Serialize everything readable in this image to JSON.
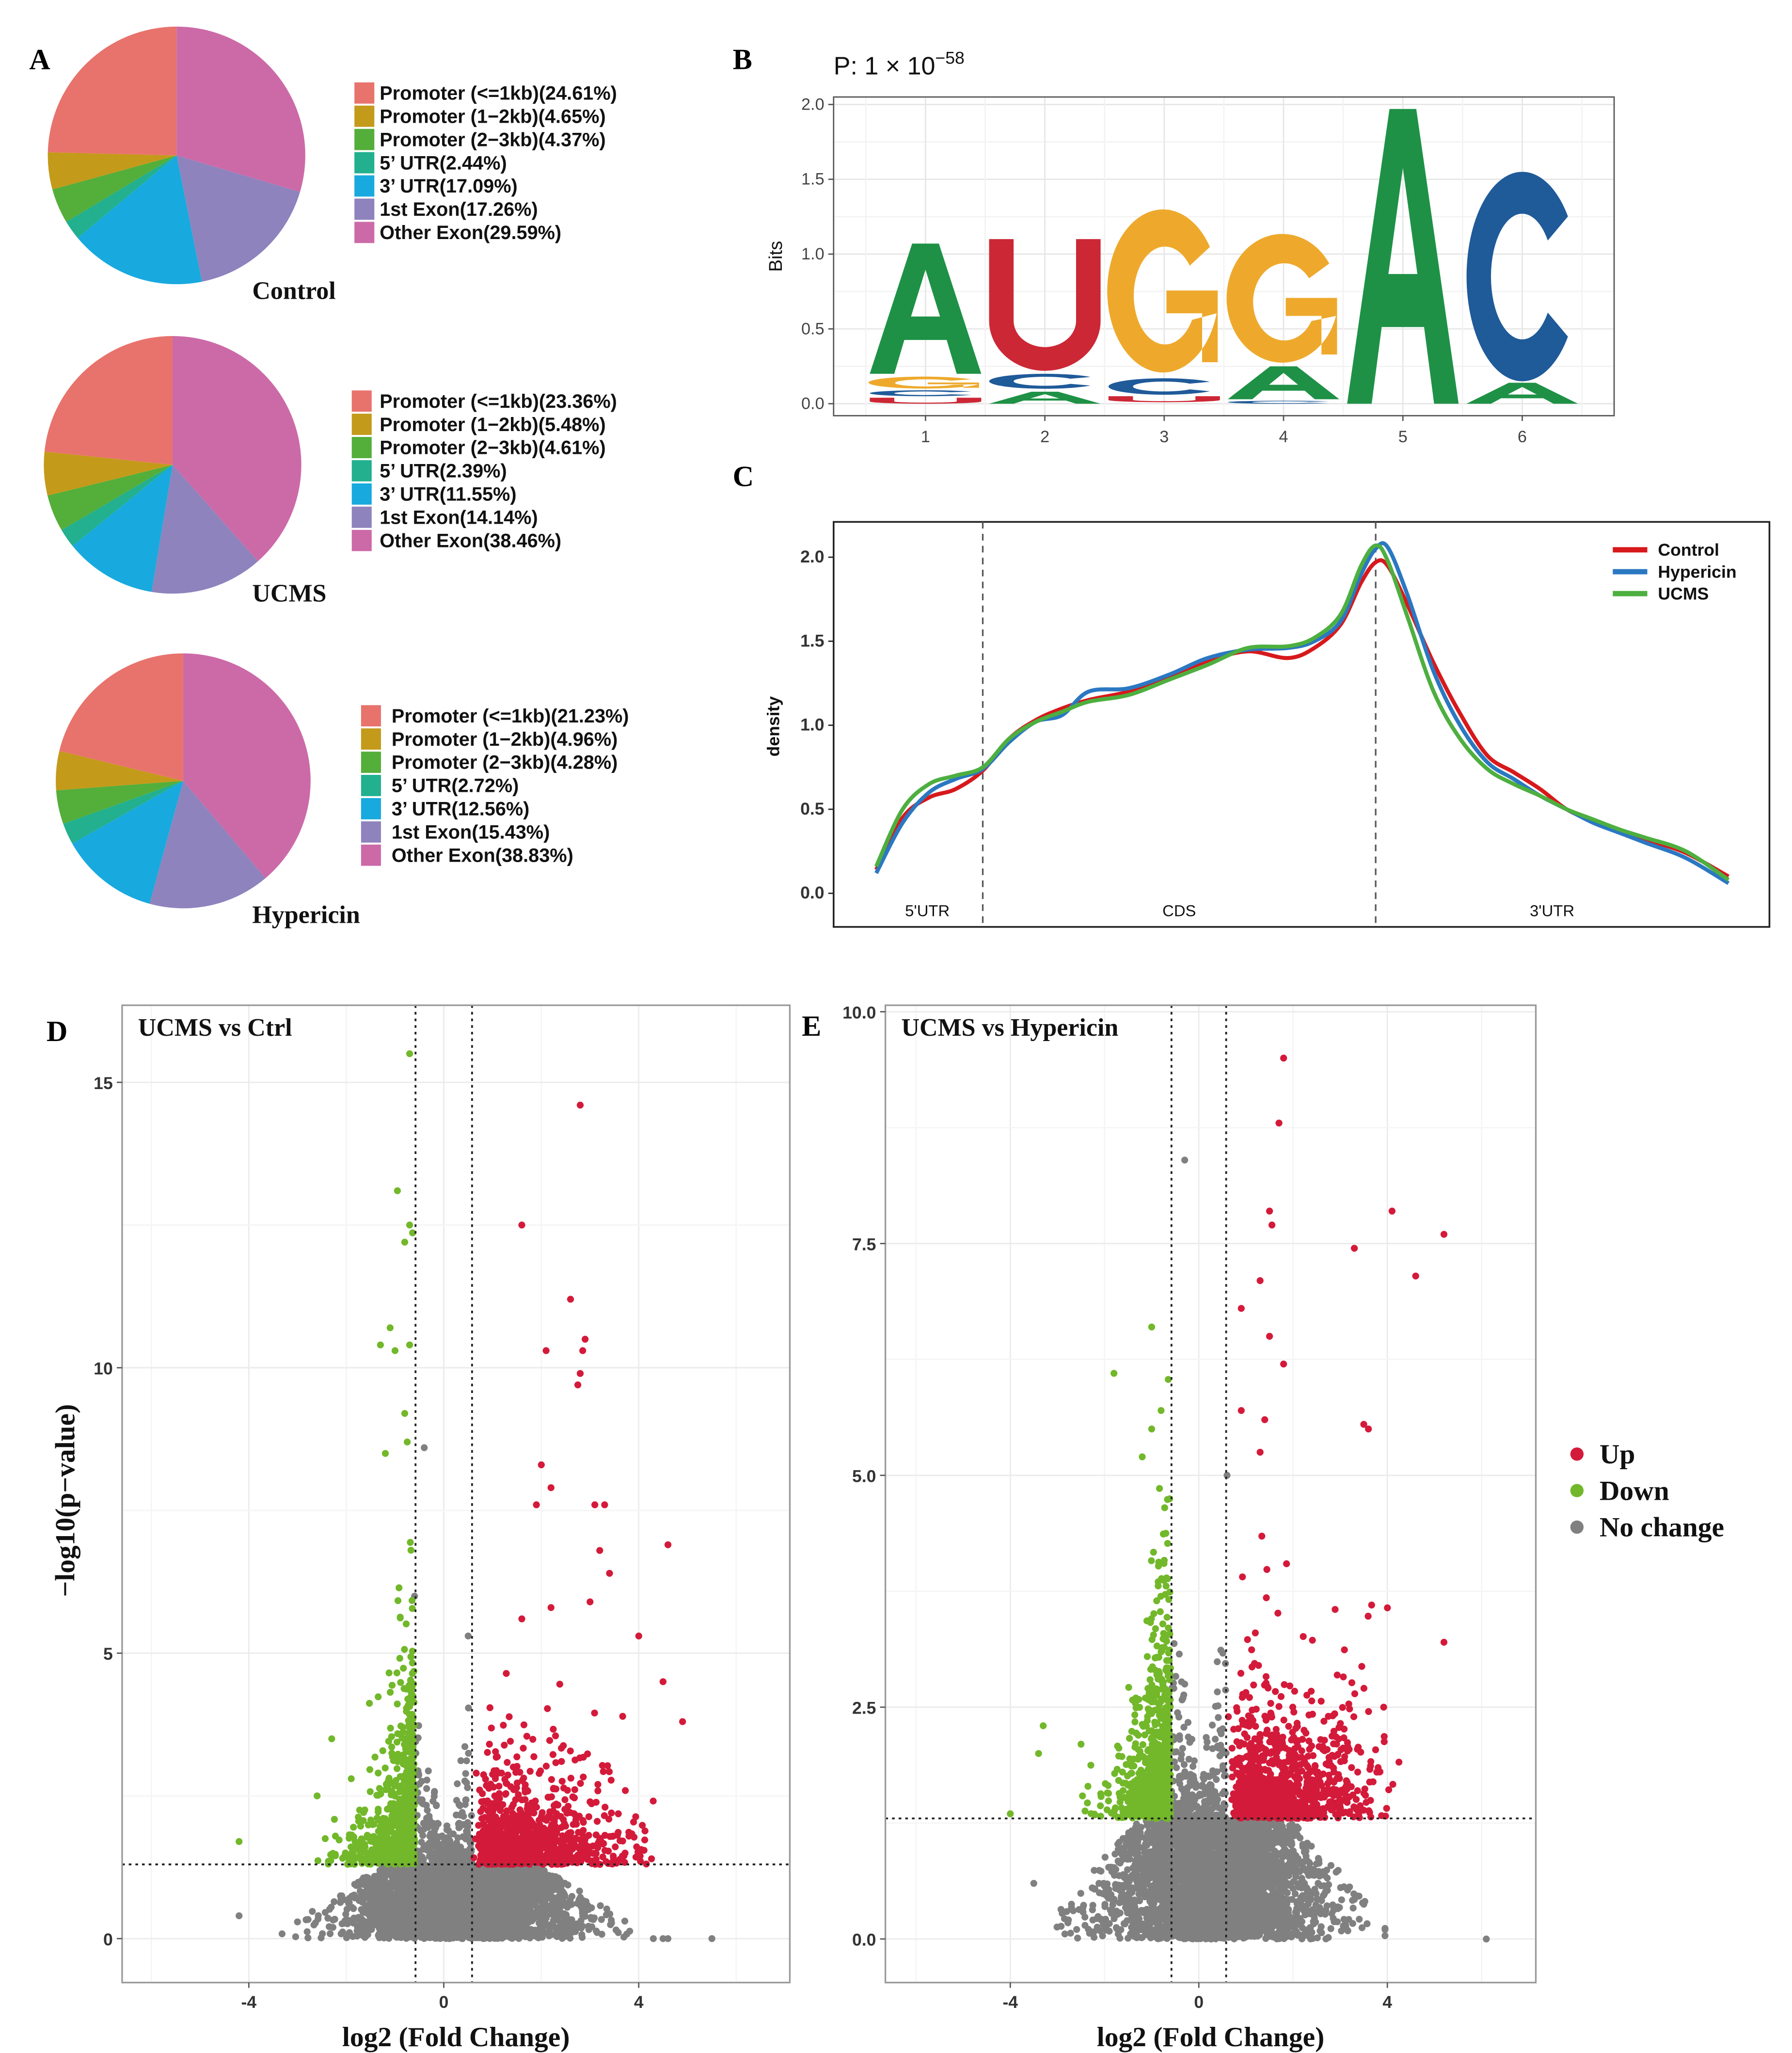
{
  "panel_labels": {
    "a": "A",
    "b": "B",
    "c": "C",
    "d": "D",
    "e": "E"
  },
  "colors": {
    "pie": [
      "#E8736C",
      "#C49A1A",
      "#54AE3A",
      "#22B08E",
      "#18A9DF",
      "#8E83BD",
      "#CC6AA8"
    ],
    "logo": {
      "A": "#1E9146",
      "U": "#CC2735",
      "G": "#EEA92C",
      "C": "#1F5A99"
    },
    "density": {
      "Control": "#D7191C",
      "Hypericin": "#2B78C2",
      "UCMS": "#4DAF3F"
    },
    "volcano": {
      "Up": "#D41A3A",
      "Down": "#72B82A",
      "No change": "#808080"
    }
  },
  "chart_data": [
    {
      "type": "pie",
      "panel": "A",
      "title": "Control",
      "categories": [
        "Promoter (<=1kb)",
        "Promoter (1−2kb)",
        "Promoter (2−3kb)",
        "5’ UTR",
        "3’ UTR",
        "1st Exon",
        "Other Exon"
      ],
      "values": [
        24.61,
        4.65,
        4.37,
        2.44,
        17.09,
        17.26,
        29.59
      ]
    },
    {
      "type": "pie",
      "panel": "A",
      "title": "UCMS",
      "categories": [
        "Promoter (<=1kb)",
        "Promoter (1−2kb)",
        "Promoter (2−3kb)",
        "5’ UTR",
        "3’ UTR",
        "1st Exon",
        "Other Exon"
      ],
      "values": [
        23.36,
        5.48,
        4.61,
        2.39,
        11.55,
        14.14,
        38.46
      ]
    },
    {
      "type": "pie",
      "panel": "A",
      "title": "Hypericin",
      "categories": [
        "Promoter (<=1kb)",
        "Promoter (1−2kb)",
        "Promoter (2−3kb)",
        "5’ UTR",
        "3’ UTR",
        "1st Exon",
        "Other Exon"
      ],
      "values": [
        21.23,
        4.96,
        4.28,
        2.72,
        12.56,
        15.43,
        38.83
      ]
    },
    {
      "type": "sequence-logo",
      "panel": "B",
      "title_prefix": "P:  1 × 10",
      "title_exponent": "−58",
      "ylabel": "Bits",
      "ylim": [
        -0.08,
        2.05
      ],
      "xlim": [
        0.23,
        6.77
      ],
      "yticks": [
        "0.0",
        "0.5",
        "1.0",
        "1.5",
        "2.0"
      ],
      "xticks": [
        "1",
        "2",
        "3",
        "4",
        "5",
        "6"
      ],
      "positions": [
        [
          {
            "l": "U",
            "lo": 0.0,
            "hi": 0.04
          },
          {
            "l": "C",
            "lo": 0.05,
            "hi": 0.09
          },
          {
            "l": "G",
            "lo": 0.1,
            "hi": 0.18
          },
          {
            "l": "A",
            "lo": 0.2,
            "hi": 1.07
          }
        ],
        [
          {
            "l": "A",
            "lo": 0.0,
            "hi": 0.08
          },
          {
            "l": "C",
            "lo": 0.1,
            "hi": 0.2
          },
          {
            "l": "U",
            "lo": 0.22,
            "hi": 1.1
          }
        ],
        [
          {
            "l": "U",
            "lo": 0.01,
            "hi": 0.05
          },
          {
            "l": "C",
            "lo": 0.06,
            "hi": 0.17
          },
          {
            "l": "G",
            "lo": 0.19,
            "hi": 1.28
          }
        ],
        [
          {
            "l": "C",
            "lo": 0.0,
            "hi": 0.02
          },
          {
            "l": "A",
            "lo": 0.03,
            "hi": 0.25
          },
          {
            "l": "G",
            "lo": 0.26,
            "hi": 1.12
          }
        ],
        [
          {
            "l": "A",
            "lo": 0.0,
            "hi": 1.97
          }
        ],
        [
          {
            "l": "A",
            "lo": 0.0,
            "hi": 0.14
          },
          {
            "l": "C",
            "lo": 0.15,
            "hi": 1.55
          }
        ]
      ]
    },
    {
      "type": "line",
      "panel": "C",
      "ylabel": "density",
      "xlabel": "",
      "xlim": [
        -5,
        104.8
      ],
      "ylim": [
        -0.2,
        2.21
      ],
      "yticks": [
        0,
        0.5,
        1.0,
        1.5,
        2.0
      ],
      "regions": [
        {
          "label": "5'UTR",
          "start": 0,
          "end": 12.5
        },
        {
          "label": "CDS",
          "start": 12.5,
          "end": 58.6
        },
        {
          "label": "3'UTR",
          "start": 58.6,
          "end": 100
        }
      ],
      "boundaries": [
        12.5,
        58.6
      ],
      "x": [
        0,
        3.1,
        6.2,
        9.3,
        12.5,
        15.6,
        18.7,
        21.8,
        24.9,
        29.6,
        34.3,
        38.9,
        43.6,
        48.3,
        51.4,
        54.5,
        56.9,
        58.6,
        60.0,
        62.3,
        65.4,
        68.5,
        71.7,
        74.8,
        77.9,
        81.0,
        84.1,
        87.2,
        90.3,
        95.0,
        100
      ],
      "series": [
        {
          "name": "Control",
          "values": [
            0.14,
            0.45,
            0.57,
            0.62,
            0.73,
            0.92,
            1.03,
            1.1,
            1.15,
            1.2,
            1.28,
            1.38,
            1.44,
            1.4,
            1.46,
            1.6,
            1.85,
            1.97,
            1.95,
            1.72,
            1.37,
            1.07,
            0.82,
            0.72,
            0.62,
            0.5,
            0.43,
            0.37,
            0.32,
            0.24,
            0.1
          ]
        },
        {
          "name": "Hypericin",
          "values": [
            0.12,
            0.42,
            0.6,
            0.68,
            0.74,
            0.9,
            1.02,
            1.06,
            1.2,
            1.22,
            1.3,
            1.4,
            1.45,
            1.46,
            1.5,
            1.62,
            1.9,
            2.05,
            2.06,
            1.78,
            1.32,
            1.0,
            0.78,
            0.68,
            0.58,
            0.5,
            0.42,
            0.36,
            0.3,
            0.21,
            0.06
          ]
        },
        {
          "name": "UCMS",
          "values": [
            0.16,
            0.5,
            0.65,
            0.7,
            0.75,
            0.92,
            1.02,
            1.08,
            1.14,
            1.18,
            1.27,
            1.36,
            1.46,
            1.47,
            1.52,
            1.66,
            1.95,
            2.07,
            1.98,
            1.65,
            1.2,
            0.92,
            0.74,
            0.65,
            0.58,
            0.5,
            0.44,
            0.38,
            0.33,
            0.25,
            0.08
          ]
        }
      ],
      "legend_position": "top-right"
    },
    {
      "type": "scatter",
      "panel": "D",
      "title": "UCMS vs Ctrl",
      "xlabel": "log2 (Fold Change)",
      "ylabel": "−log10(p−value)",
      "xlim": [
        -6.6,
        7.1
      ],
      "ylim": [
        -0.77,
        16.35
      ],
      "xticks": [
        "-4",
        "0",
        "4"
      ],
      "xtick_values": [
        -4,
        0,
        4
      ],
      "yticks": [
        "0",
        "5",
        "10",
        "15"
      ],
      "ytick_values": [
        0,
        5,
        10,
        15
      ],
      "fc_threshold": 0.58,
      "p_threshold": 1.3,
      "highlighted_points": {
        "Down": [
          [
            -0.7,
            15.5
          ],
          [
            -0.95,
            13.1
          ],
          [
            -0.7,
            12.5
          ],
          [
            -0.8,
            12.2
          ],
          [
            -1.1,
            10.7
          ],
          [
            -1.3,
            10.4
          ],
          [
            -1.0,
            10.3
          ],
          [
            -0.7,
            10.4
          ],
          [
            -0.8,
            9.2
          ],
          [
            -0.75,
            8.7
          ],
          [
            -1.2,
            8.5
          ],
          [
            -4.2,
            1.7
          ],
          [
            -2.6,
            2.5
          ],
          [
            -2.3,
            3.5
          ],
          [
            -1.9,
            2.8
          ]
        ],
        "Up": [
          [
            2.8,
            14.6
          ],
          [
            1.6,
            12.5
          ],
          [
            2.6,
            11.2
          ],
          [
            2.1,
            10.3
          ],
          [
            2.9,
            10.5
          ],
          [
            2.85,
            10.3
          ],
          [
            2.8,
            9.9
          ],
          [
            2.75,
            9.7
          ],
          [
            2.0,
            8.3
          ],
          [
            2.2,
            7.9
          ],
          [
            1.9,
            7.6
          ],
          [
            3.1,
            7.6
          ],
          [
            3.3,
            7.6
          ],
          [
            4.6,
            6.9
          ],
          [
            3.2,
            6.8
          ],
          [
            3.4,
            6.4
          ],
          [
            1.6,
            5.6
          ],
          [
            2.2,
            5.8
          ],
          [
            3.0,
            5.9
          ],
          [
            4.0,
            5.3
          ],
          [
            4.9,
            3.8
          ],
          [
            4.5,
            4.5
          ]
        ],
        "No change": [
          [
            -0.4,
            8.6
          ],
          [
            0.5,
            5.3
          ],
          [
            4.3,
            0
          ],
          [
            4.5,
            0
          ],
          [
            4.6,
            0
          ],
          [
            5.5,
            0
          ],
          [
            -4.2,
            0.4
          ],
          [
            -0.6,
            6.0
          ]
        ]
      }
    },
    {
      "type": "scatter",
      "panel": "E",
      "title": "UCMS vs Hypericin",
      "xlabel": "log2 (Fold Change)",
      "ylabel": "",
      "xlim": [
        -6.65,
        7.15
      ],
      "ylim": [
        -0.47,
        10.07
      ],
      "xticks": [
        "-4",
        "0",
        "4"
      ],
      "xtick_values": [
        -4,
        0,
        4
      ],
      "yticks": [
        "0.0",
        "2.5",
        "5.0",
        "7.5",
        "10.0"
      ],
      "ytick_values": [
        0,
        2.5,
        5,
        7.5,
        10
      ],
      "fc_threshold": 0.58,
      "p_threshold": 1.3,
      "highlighted_points": {
        "Up": [
          [
            1.8,
            9.5
          ],
          [
            1.7,
            8.8
          ],
          [
            1.5,
            7.85
          ],
          [
            1.55,
            7.7
          ],
          [
            4.1,
            7.85
          ],
          [
            5.2,
            7.6
          ],
          [
            3.3,
            7.45
          ],
          [
            4.6,
            7.15
          ],
          [
            1.3,
            7.1
          ],
          [
            0.9,
            6.8
          ],
          [
            1.5,
            6.5
          ],
          [
            1.8,
            6.2
          ],
          [
            0.9,
            5.7
          ],
          [
            1.4,
            5.6
          ],
          [
            3.5,
            5.55
          ],
          [
            3.6,
            5.5
          ],
          [
            1.3,
            5.25
          ],
          [
            5.2,
            3.2
          ]
        ],
        "Down": [
          [
            -1.0,
            6.6
          ],
          [
            -1.8,
            6.1
          ],
          [
            -0.8,
            5.7
          ],
          [
            -1.0,
            5.5
          ],
          [
            -1.2,
            5.2
          ],
          [
            -4.0,
            1.35
          ],
          [
            -3.4,
            2.0
          ],
          [
            -3.3,
            2.3
          ],
          [
            -2.5,
            2.1
          ]
        ],
        "No change": [
          [
            -0.3,
            8.4
          ],
          [
            0.6,
            5.0
          ],
          [
            6.1,
            0
          ],
          [
            -3.5,
            0.6
          ]
        ]
      }
    }
  ],
  "volcano_legend": [
    "Up",
    "Down",
    "No change"
  ]
}
